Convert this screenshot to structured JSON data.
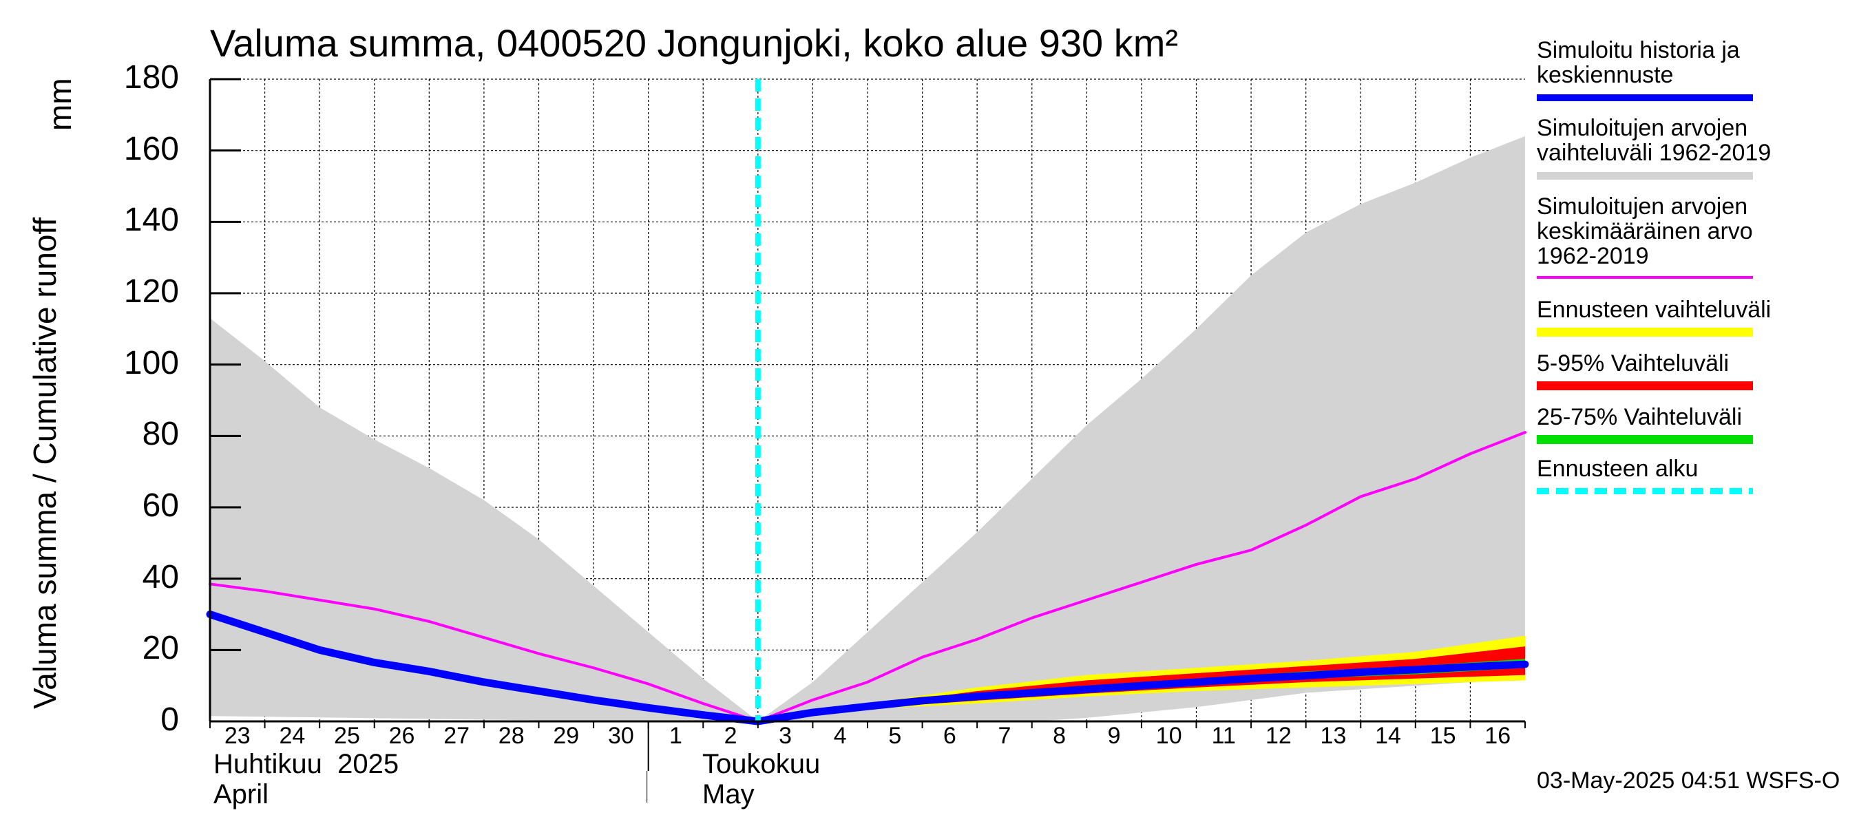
{
  "title": "Valuma summa, 0400520 Jongunjoki, koko alue 930 km²",
  "y_axis_title": "Valuma summa / Cumulative runoff",
  "y_axis_unit": "mm",
  "timestamp": "03-May-2025 04:51 WSFS-O",
  "months": [
    {
      "line1": "Huhtikuu  2025",
      "line2": "April"
    },
    {
      "line1": "Toukokuu",
      "line2": "May"
    }
  ],
  "legend": [
    {
      "label": "Simuloitu historia ja\nkeskiennuste",
      "color": "#0000ff",
      "style": "solid-thick"
    },
    {
      "label": "Simuloitujen arvojen\nvaihteluväli 1962-2019",
      "color": "#d3d3d3",
      "style": "solid-medium"
    },
    {
      "label": "Simuloitujen arvojen\nkeskimääräinen arvo\n   1962-2019",
      "color": "#ff00ff",
      "style": "solid-thin"
    },
    {
      "label": "Ennusteen vaihteluväli",
      "color": "#ffff00",
      "style": "solid-medium"
    },
    {
      "label": "5-95% Vaihteluväli",
      "color": "#ff0000",
      "style": "solid-medium"
    },
    {
      "label": "25-75% Vaihteluväli",
      "color": "#00e000",
      "style": "solid-medium"
    },
    {
      "label": "Ennusteen alku",
      "color": "#00ffff",
      "style": "dashed"
    }
  ],
  "chart_data": {
    "type": "area",
    "title": "Valuma summa, 0400520 Jongunjoki, koko alue 930 km²",
    "ylabel": "Valuma summa / Cumulative runoff  mm",
    "xlabel": "",
    "ylim": [
      0,
      180
    ],
    "yticks": [
      0,
      20,
      40,
      60,
      80,
      100,
      120,
      140,
      160,
      180
    ],
    "grid": true,
    "x_tick_labels": [
      "23",
      "24",
      "25",
      "26",
      "27",
      "28",
      "29",
      "30",
      "1",
      "2",
      "3",
      "4",
      "5",
      "6",
      "7",
      "8",
      "9",
      "10",
      "11",
      "12",
      "13",
      "14",
      "15",
      "16"
    ],
    "x_day_range": [
      0,
      24
    ],
    "forecast_start_day": 10,
    "series": [
      {
        "name": "Simuloitujen arvojen vaihteluväli 1962-2019 (max)",
        "role": "band-upper",
        "x": [
          0,
          1,
          2,
          3,
          4,
          5,
          6,
          7,
          8,
          9,
          10,
          11,
          12,
          13,
          14,
          15,
          16,
          17,
          18,
          19,
          20,
          21,
          22,
          23,
          24
        ],
        "values": [
          113,
          101,
          88,
          79,
          71,
          62,
          51,
          38,
          25,
          12,
          0,
          11,
          25,
          39,
          53,
          68,
          83,
          96,
          110,
          125,
          137,
          145,
          151,
          158,
          164
        ]
      },
      {
        "name": "Simuloitujen arvojen vaihteluväli 1962-2019 (min)",
        "role": "band-lower",
        "x": [
          0,
          1,
          2,
          3,
          4,
          5,
          6,
          7,
          8,
          9,
          10,
          11,
          12,
          13,
          14,
          15,
          16,
          17,
          18,
          19,
          20,
          21,
          22,
          23,
          24
        ],
        "values": [
          1.5,
          1.3,
          1.1,
          0.9,
          0.7,
          0.5,
          0.3,
          0.2,
          0.1,
          0,
          0,
          0,
          0,
          0,
          0,
          0,
          1,
          2.5,
          4,
          6,
          8,
          9,
          10,
          11,
          12
        ]
      },
      {
        "name": "Ennusteen vaihteluväli (max)",
        "role": "band-upper",
        "x": [
          10,
          12,
          14,
          16,
          18,
          20,
          22,
          24
        ],
        "values": [
          0,
          5,
          9.5,
          13,
          15,
          17,
          19.5,
          24
        ]
      },
      {
        "name": "Ennusteen vaihteluväli (min)",
        "role": "band-lower",
        "x": [
          10,
          12,
          14,
          16,
          18,
          20,
          22,
          24
        ],
        "values": [
          0,
          3.5,
          5,
          7,
          8.5,
          9.5,
          10.5,
          11.5
        ]
      },
      {
        "name": "5-95% Vaihteluväli (max)",
        "role": "band-upper",
        "x": [
          10,
          12,
          14,
          16,
          18,
          20,
          22,
          24
        ],
        "values": [
          0,
          4.5,
          8.5,
          11.5,
          13.5,
          15.5,
          17.5,
          21
        ]
      },
      {
        "name": "5-95% Vaihteluväli (min)",
        "role": "band-lower",
        "x": [
          10,
          12,
          14,
          16,
          18,
          20,
          22,
          24
        ],
        "values": [
          0,
          3.8,
          5.8,
          7.8,
          9.5,
          11,
          12,
          13
        ]
      },
      {
        "name": "25-75% Vaihteluväli (max)",
        "role": "band-upper",
        "x": [
          10,
          12,
          14,
          16,
          18,
          20,
          22,
          24
        ],
        "values": [
          0,
          4.2,
          7.3,
          10,
          12,
          14,
          15.5,
          17.5
        ]
      },
      {
        "name": "25-75% Vaihteluväli (min)",
        "role": "band-lower",
        "x": [
          10,
          12,
          14,
          16,
          18,
          20,
          22,
          24
        ],
        "values": [
          0,
          3.9,
          6.2,
          8.6,
          10.3,
          12,
          13.2,
          15
        ]
      },
      {
        "name": "Simuloitujen arvojen keskimääräinen arvo 1962-2019",
        "role": "line",
        "x": [
          0,
          1,
          2,
          3,
          4,
          5,
          6,
          7,
          8,
          9,
          10,
          11,
          12,
          13,
          14,
          15,
          16,
          17,
          18,
          19,
          20,
          21,
          22,
          23,
          24
        ],
        "values": [
          38.5,
          36.5,
          34,
          31.5,
          28,
          23.5,
          19,
          15,
          10.5,
          5,
          0,
          6,
          11,
          18,
          23,
          29,
          34,
          39,
          44,
          48,
          55,
          63,
          68,
          75,
          81
        ]
      },
      {
        "name": "Simuloitu historia ja keskiennuste",
        "role": "line",
        "x": [
          0,
          1,
          2,
          3,
          4,
          5,
          6,
          7,
          8,
          9,
          10,
          11,
          12,
          13,
          14,
          15,
          16,
          17,
          18,
          19,
          20,
          21,
          22,
          23,
          24
        ],
        "values": [
          30,
          25,
          20,
          16.5,
          14,
          11,
          8.5,
          6,
          3.8,
          1.8,
          0,
          2.5,
          4.2,
          5.8,
          7,
          8,
          9,
          10,
          11,
          12,
          12.8,
          13.8,
          14.5,
          15.3,
          16
        ]
      }
    ]
  }
}
